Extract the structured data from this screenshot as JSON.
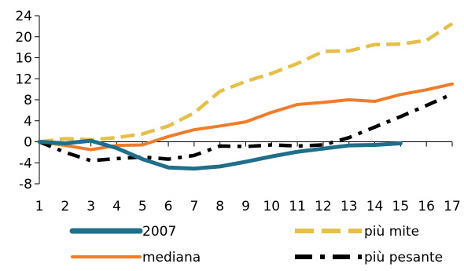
{
  "chart_data": {
    "type": "line",
    "x": [
      1,
      2,
      3,
      4,
      5,
      6,
      7,
      8,
      9,
      10,
      11,
      12,
      13,
      14,
      15,
      16,
      17
    ],
    "xlim": [
      1,
      17
    ],
    "ylim": [
      -8,
      24
    ],
    "yticks": [
      -8,
      -4,
      0,
      4,
      8,
      12,
      16,
      20,
      24
    ],
    "ytick_labels": [
      "-8",
      "-4",
      "0",
      "4",
      "8",
      "12",
      "16",
      "20",
      "24"
    ],
    "xtick_labels": [
      "1",
      "2",
      "3",
      "4",
      "5",
      "6",
      "7",
      "8",
      "9",
      "10",
      "11",
      "12",
      "13",
      "14",
      "15",
      "16",
      "17"
    ],
    "grid": false,
    "legend_position": "bottom",
    "series": [
      {
        "name": "2007",
        "color": "#1f6f8b",
        "style": "solid-thick",
        "values": [
          0,
          -0.3,
          0.2,
          -1.2,
          -3.3,
          -4.9,
          -5.1,
          -4.7,
          -3.8,
          -2.8,
          -1.9,
          -1.3,
          -0.7,
          -0.6,
          -0.3,
          null,
          null
        ]
      },
      {
        "name": "mediana",
        "color": "#f07c2a",
        "style": "solid",
        "values": [
          0,
          -0.7,
          -1.5,
          -0.7,
          -0.6,
          1.0,
          2.3,
          3.0,
          3.8,
          5.6,
          7.1,
          7.5,
          8.0,
          7.7,
          9.0,
          9.9,
          11.0
        ]
      },
      {
        "name": "più mite",
        "color": "#e5bf4a",
        "style": "dashed",
        "values": [
          0,
          0.6,
          0.4,
          0.8,
          1.5,
          3.0,
          5.5,
          9.6,
          11.5,
          13.0,
          14.9,
          17.2,
          17.3,
          18.5,
          18.6,
          19.3,
          22.5
        ]
      },
      {
        "name": "più pesante",
        "color": "#000000",
        "style": "dash-dot",
        "values": [
          0,
          -2.0,
          -3.6,
          -3.2,
          -2.9,
          -3.3,
          -2.6,
          -0.8,
          -0.9,
          -0.6,
          -0.8,
          -0.6,
          0.8,
          2.8,
          4.8,
          6.9,
          9.1
        ]
      }
    ]
  }
}
